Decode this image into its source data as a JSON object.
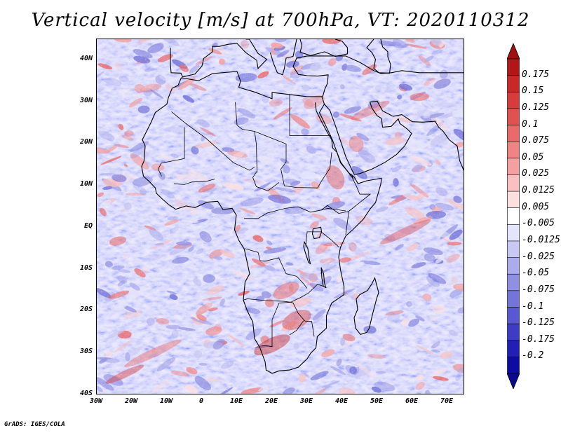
{
  "title": "Vertical velocity [m/s] at 700hPa, VT: 2020110312",
  "credit": "GrADS: IGES/COLA",
  "map": {
    "projection": "latlon",
    "lon_range": [
      -30,
      75
    ],
    "lat_range": [
      -40,
      45
    ],
    "lat_labels": [
      "40N",
      "30N",
      "20N",
      "10N",
      "EQ",
      "10S",
      "20S",
      "30S",
      "40S"
    ],
    "lat_values": [
      40,
      30,
      20,
      10,
      0,
      -10,
      -20,
      -30,
      -40
    ],
    "lon_labels": [
      "30W",
      "20W",
      "10W",
      "0",
      "10E",
      "20E",
      "30E",
      "40E",
      "50E",
      "60E",
      "70E"
    ],
    "lon_values": [
      -30,
      -20,
      -10,
      0,
      10,
      20,
      30,
      40,
      50,
      60,
      70
    ]
  },
  "colorbar": {
    "labels": [
      "0.175",
      "0.15",
      "0.125",
      "0.1",
      "0.075",
      "0.05",
      "0.025",
      "0.0125",
      "0.005",
      "-0.005",
      "-0.0125",
      "-0.025",
      "-0.05",
      "-0.075",
      "-0.1",
      "-0.125",
      "-0.175",
      "-0.2"
    ],
    "colors": [
      "#b01818",
      "#c82828",
      "#d63c3c",
      "#e05252",
      "#e86a6a",
      "#ee8484",
      "#f3a0a0",
      "#f8c0c0",
      "#fce0e0",
      "#ffffff",
      "#e4e4fa",
      "#c8c8f2",
      "#acacec",
      "#9090e2",
      "#7474da",
      "#5858d0",
      "#3c3cc4",
      "#2020b4",
      "#0c0ca0"
    ],
    "top_color": "#a01010",
    "bottom_color": "#0a0a90"
  }
}
